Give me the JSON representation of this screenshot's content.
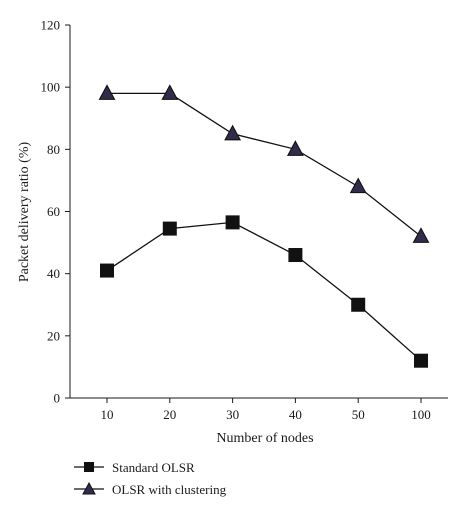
{
  "chart_data": {
    "type": "line",
    "categories": [
      "10",
      "20",
      "30",
      "40",
      "50",
      "100"
    ],
    "xlabel": "Number of nodes",
    "ylabel": "Packet delivery ratio (%)",
    "ylim": [
      0,
      120
    ],
    "yticks": [
      0,
      20,
      40,
      60,
      80,
      100,
      120
    ],
    "grid": false,
    "legend_position": "bottom-left",
    "series": [
      {
        "name": "Standard OLSR",
        "marker": "square",
        "color": "#111111",
        "values": [
          41,
          54.5,
          56.5,
          46,
          30,
          12
        ]
      },
      {
        "name": "OLSR with clustering",
        "marker": "triangle",
        "color": "#111111",
        "marker_fill": "#2f2d4a",
        "values": [
          98,
          98,
          85,
          80,
          68,
          52
        ]
      }
    ]
  }
}
